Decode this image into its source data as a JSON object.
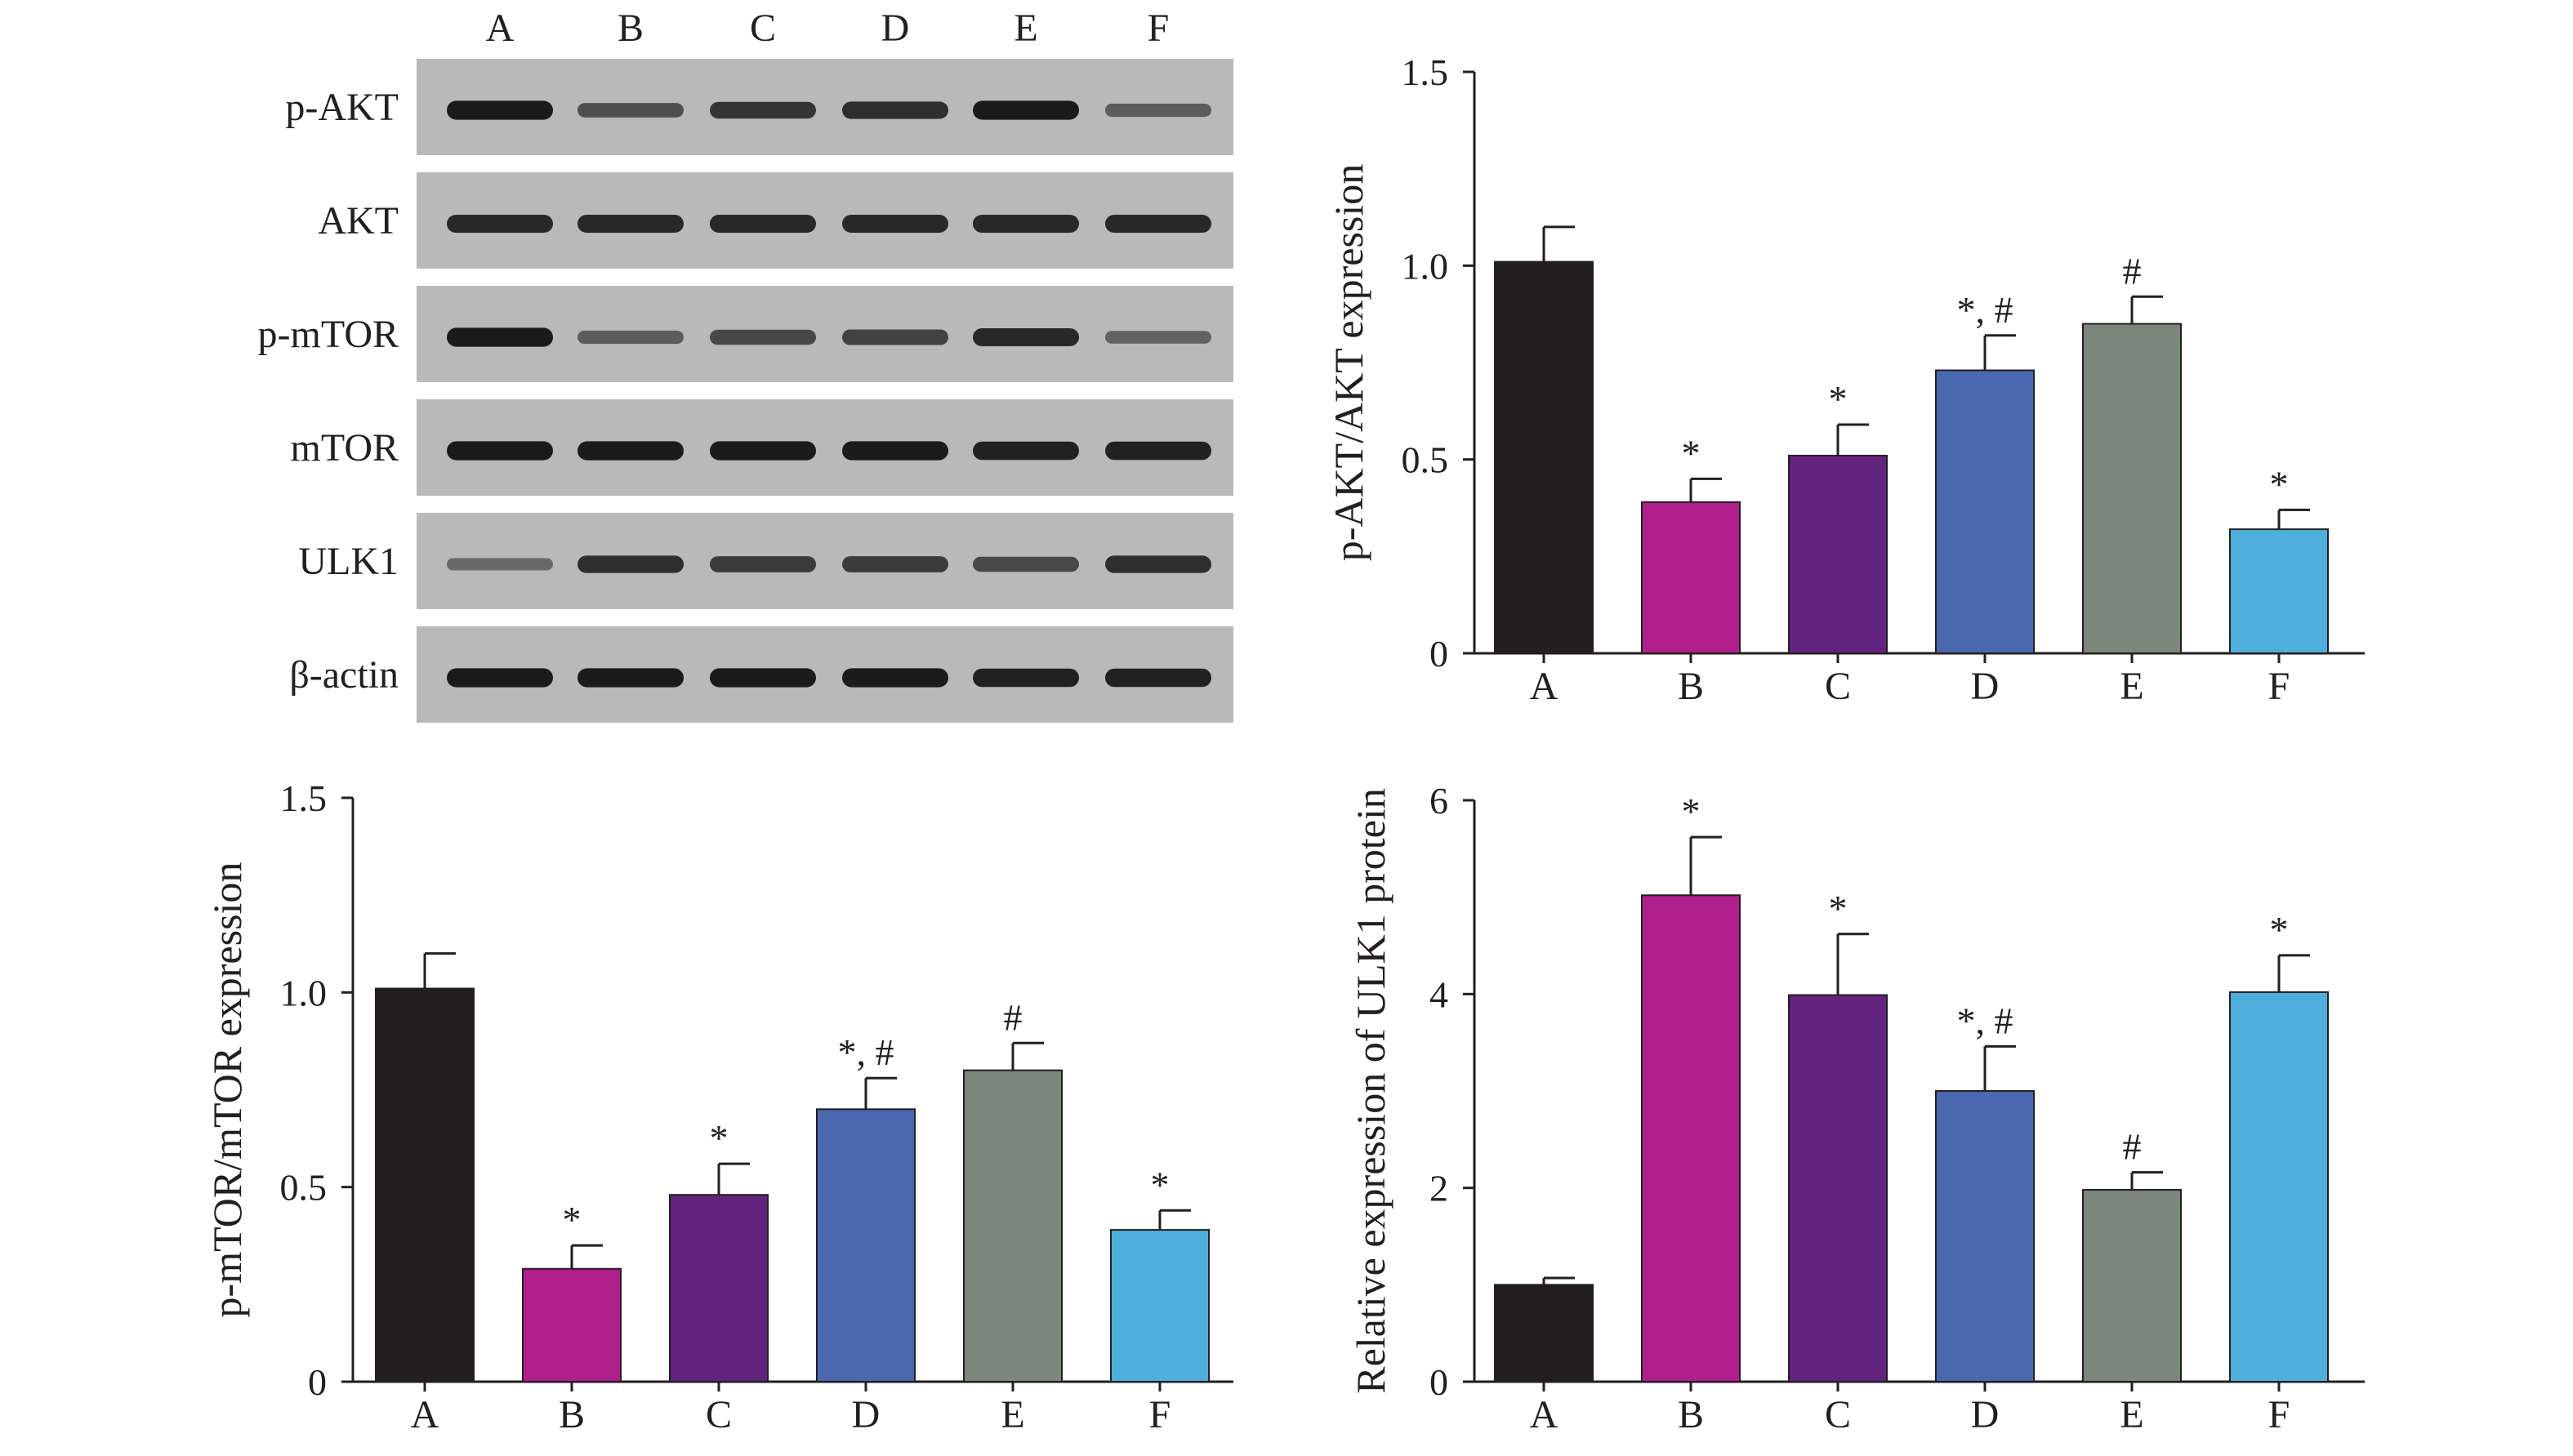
{
  "blot": {
    "lanes": [
      "A",
      "B",
      "C",
      "D",
      "E",
      "F"
    ],
    "rows": [
      {
        "label": "p-AKT",
        "intensity": [
          0.95,
          0.55,
          0.75,
          0.8,
          0.95,
          0.45
        ]
      },
      {
        "label": "AKT",
        "intensity": [
          0.85,
          0.85,
          0.85,
          0.85,
          0.85,
          0.85
        ]
      },
      {
        "label": "p-mTOR",
        "intensity": [
          0.95,
          0.45,
          0.6,
          0.65,
          0.85,
          0.4
        ]
      },
      {
        "label": "mTOR",
        "intensity": [
          0.95,
          0.95,
          0.95,
          0.95,
          0.9,
          0.9
        ]
      },
      {
        "label": "ULK1",
        "intensity": [
          0.35,
          0.8,
          0.7,
          0.7,
          0.6,
          0.8
        ]
      },
      {
        "label": "β-actin",
        "intensity": [
          0.95,
          0.95,
          0.95,
          0.95,
          0.9,
          0.9
        ]
      }
    ]
  },
  "chart_data": [
    {
      "type": "bar",
      "ylabel": "p-AKT/AKT expression",
      "categories": [
        "A",
        "B",
        "C",
        "D",
        "E",
        "F"
      ],
      "values": [
        1.01,
        0.39,
        0.51,
        0.73,
        0.85,
        0.32
      ],
      "errors": [
        0.09,
        0.06,
        0.08,
        0.09,
        0.07,
        0.05
      ],
      "annotations": [
        "",
        "*",
        "*",
        "*, #",
        "#",
        "*"
      ],
      "ylim": [
        0,
        1.5
      ],
      "yticks": [
        0,
        0.5,
        1.0,
        1.5
      ],
      "ytick_labels": [
        "0",
        "0.5",
        "1.0",
        "1.5"
      ],
      "colors": [
        "#231f20",
        "#b01f8c",
        "#62237f",
        "#4a67b0",
        "#7a877a",
        "#4eafdd"
      ]
    },
    {
      "type": "bar",
      "ylabel": "p-mTOR/mTOR expression",
      "categories": [
        "A",
        "B",
        "C",
        "D",
        "E",
        "F"
      ],
      "values": [
        1.01,
        0.29,
        0.48,
        0.7,
        0.8,
        0.39
      ],
      "errors": [
        0.09,
        0.06,
        0.08,
        0.08,
        0.07,
        0.05
      ],
      "annotations": [
        "",
        "*",
        "*",
        "*, #",
        "#",
        "*"
      ],
      "ylim": [
        0,
        1.5
      ],
      "yticks": [
        0,
        0.5,
        1.0,
        1.5
      ],
      "ytick_labels": [
        "0",
        "0.5",
        "1.0",
        "1.5"
      ],
      "colors": [
        "#231f20",
        "#b01f8c",
        "#62237f",
        "#4a67b0",
        "#7a877a",
        "#4eafdd"
      ]
    },
    {
      "type": "bar",
      "ylabel": "Relative expression of ULK1 protein",
      "categories": [
        "A",
        "B",
        "C",
        "D",
        "E",
        "F"
      ],
      "values": [
        1.0,
        5.02,
        3.99,
        3.0,
        1.98,
        4.02
      ],
      "errors": [
        0.07,
        0.6,
        0.63,
        0.46,
        0.18,
        0.38
      ],
      "annotations": [
        "",
        "*",
        "*",
        "*, #",
        "#",
        "*"
      ],
      "ylim": [
        0,
        6
      ],
      "yticks": [
        0,
        2,
        4,
        6
      ],
      "ytick_labels": [
        "0",
        "2",
        "4",
        "6"
      ],
      "colors": [
        "#231f20",
        "#b01f8c",
        "#62237f",
        "#4a67b0",
        "#7a877a",
        "#4eafdd"
      ]
    }
  ]
}
